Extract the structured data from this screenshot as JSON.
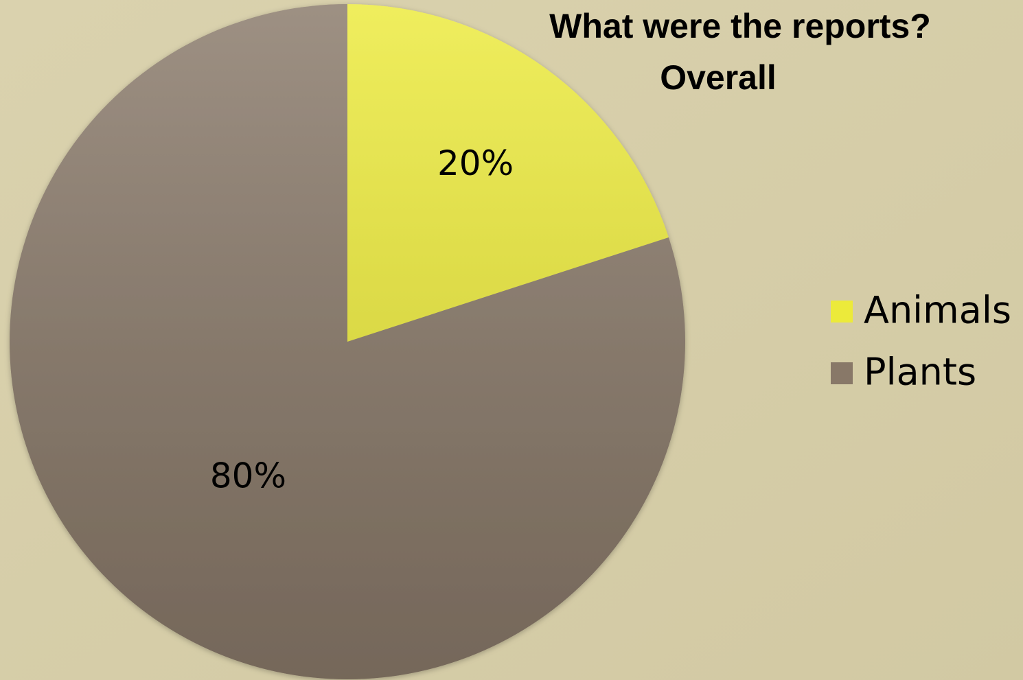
{
  "chart_data": {
    "type": "pie",
    "title": "What were the reports?",
    "subtitle": "Overall",
    "categories": [
      "Animals",
      "Plants"
    ],
    "values": [
      20,
      80
    ],
    "value_labels": [
      "20%",
      "80%"
    ],
    "colors": [
      "#ecea3a",
      "#887868"
    ],
    "legend": "right"
  }
}
